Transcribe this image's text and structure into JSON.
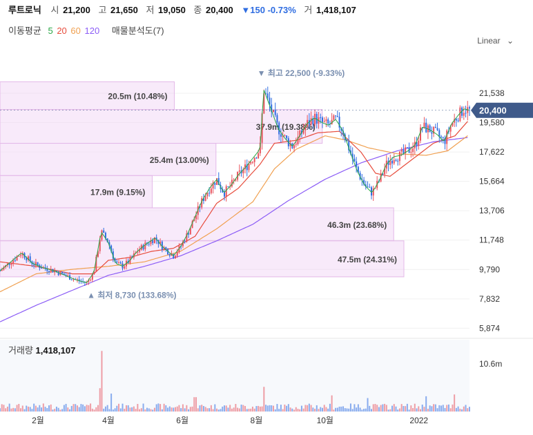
{
  "header": {
    "name": "루트로닉",
    "open_label": "시",
    "open": "21,200",
    "high_label": "고",
    "high": "21,650",
    "low_label": "저",
    "low": "19,050",
    "close_label": "종",
    "close": "20,400",
    "change": "▼150 -0.73%",
    "volume_label": "거",
    "volume": "1,418,107"
  },
  "ma_legend": {
    "title": "이동평균",
    "periods": [
      "5",
      "20",
      "60",
      "120"
    ],
    "analysis": "매물분석도(7)"
  },
  "scale_mode": "Linear",
  "colors": {
    "up": "#e8525c",
    "down": "#2f6de1",
    "ma5": "#28a745",
    "ma20": "#e74c3c",
    "ma60": "#f0a050",
    "ma120": "#8b5cf6",
    "profile": "#f3d8f5",
    "current": "#3f5a8a"
  },
  "chart_data": {
    "type": "candlestick",
    "x_ticks": [
      "2월",
      "4월",
      "6월",
      "8월",
      "10월",
      "2022"
    ],
    "y_ticks": [
      21538,
      19580,
      17622,
      15664,
      13706,
      11748,
      9790,
      7832,
      5874
    ],
    "y_tick_labels": [
      "21,538",
      "19,580",
      "17,622",
      "15,664",
      "13,706",
      "11,748",
      "9,790",
      "7,832",
      "5,874"
    ],
    "ylim": [
      5200,
      24300
    ],
    "current_price": 20400,
    "current_price_label": "20,400",
    "high_marker": {
      "label": "최고 22,500 (-9.33%)",
      "value": 22500,
      "month": 7.2
    },
    "low_marker": {
      "label": "최저 8,730 (133.68%)",
      "value": 8730,
      "month": 2.45
    },
    "price_path": [
      [
        0,
        9700
      ],
      [
        0.3,
        10300
      ],
      [
        0.6,
        10900
      ],
      [
        0.9,
        10200
      ],
      [
        1.2,
        9900
      ],
      [
        1.5,
        9700
      ],
      [
        1.8,
        9400
      ],
      [
        2.1,
        9100
      ],
      [
        2.4,
        8900
      ],
      [
        2.6,
        9600
      ],
      [
        2.8,
        12300
      ],
      [
        3.0,
        11600
      ],
      [
        3.2,
        10200
      ],
      [
        3.4,
        10000
      ],
      [
        3.6,
        10400
      ],
      [
        3.8,
        11000
      ],
      [
        4.0,
        11400
      ],
      [
        4.3,
        11900
      ],
      [
        4.5,
        11300
      ],
      [
        4.8,
        10700
      ],
      [
        5.0,
        11300
      ],
      [
        5.2,
        12200
      ],
      [
        5.4,
        13300
      ],
      [
        5.6,
        14400
      ],
      [
        5.8,
        15200
      ],
      [
        6.0,
        15800
      ],
      [
        6.2,
        14900
      ],
      [
        6.4,
        15400
      ],
      [
        6.6,
        16100
      ],
      [
        6.8,
        16600
      ],
      [
        7.0,
        17200
      ],
      [
        7.2,
        17800
      ],
      [
        7.3,
        21800
      ],
      [
        7.5,
        20500
      ],
      [
        7.7,
        19200
      ],
      [
        7.9,
        18500
      ],
      [
        8.1,
        18000
      ],
      [
        8.3,
        18700
      ],
      [
        8.5,
        19500
      ],
      [
        8.7,
        19900
      ],
      [
        8.9,
        19600
      ],
      [
        9.1,
        19400
      ],
      [
        9.3,
        19800
      ],
      [
        9.5,
        19000
      ],
      [
        9.7,
        17600
      ],
      [
        9.9,
        16300
      ],
      [
        10.1,
        15400
      ],
      [
        10.3,
        14900
      ],
      [
        10.5,
        15700
      ],
      [
        10.7,
        16800
      ],
      [
        10.9,
        17300
      ],
      [
        11.1,
        17400
      ],
      [
        11.3,
        17700
      ],
      [
        11.5,
        18100
      ],
      [
        11.7,
        19300
      ],
      [
        11.9,
        19100
      ],
      [
        12.1,
        18800
      ],
      [
        12.3,
        18300
      ],
      [
        12.5,
        19500
      ],
      [
        12.7,
        20100
      ],
      [
        12.85,
        20500
      ],
      [
        13.0,
        20400
      ]
    ],
    "ma20_path": [
      [
        0,
        10300
      ],
      [
        1.0,
        10000
      ],
      [
        2.0,
        9500
      ],
      [
        2.6,
        9500
      ],
      [
        3.0,
        10400
      ],
      [
        3.6,
        10600
      ],
      [
        4.2,
        11000
      ],
      [
        4.8,
        11200
      ],
      [
        5.4,
        12000
      ],
      [
        6.0,
        14200
      ],
      [
        6.6,
        15200
      ],
      [
        7.2,
        16800
      ],
      [
        7.6,
        18200
      ],
      [
        8.2,
        18400
      ],
      [
        8.8,
        18900
      ],
      [
        9.4,
        19000
      ],
      [
        10.0,
        17600
      ],
      [
        10.4,
        16200
      ],
      [
        10.8,
        16000
      ],
      [
        11.4,
        17100
      ],
      [
        12.0,
        18200
      ],
      [
        12.6,
        18700
      ],
      [
        13.0,
        19800
      ]
    ],
    "ma60_path": [
      [
        0,
        8300
      ],
      [
        1.0,
        9500
      ],
      [
        2.0,
        9800
      ],
      [
        3.0,
        10000
      ],
      [
        4.0,
        10300
      ],
      [
        5.0,
        11000
      ],
      [
        6.0,
        12500
      ],
      [
        7.0,
        14300
      ],
      [
        7.6,
        16500
      ],
      [
        8.2,
        17800
      ],
      [
        9.0,
        18700
      ],
      [
        9.6,
        18400
      ],
      [
        10.2,
        17900
      ],
      [
        11.0,
        17500
      ],
      [
        11.8,
        17400
      ],
      [
        12.4,
        17700
      ],
      [
        13.0,
        18800
      ]
    ],
    "ma120_path": [
      [
        0,
        6300
      ],
      [
        1.0,
        7400
      ],
      [
        2.0,
        8400
      ],
      [
        3.0,
        9400
      ],
      [
        4.0,
        10000
      ],
      [
        5.0,
        10700
      ],
      [
        6.0,
        11700
      ],
      [
        7.0,
        12800
      ],
      [
        8.0,
        14400
      ],
      [
        9.0,
        15800
      ],
      [
        10.0,
        16900
      ],
      [
        11.0,
        17700
      ],
      [
        12.0,
        18300
      ],
      [
        13.0,
        18600
      ]
    ],
    "volume_profile": [
      {
        "label": "20.5m (10.48%)",
        "low": 20450,
        "high": 22300,
        "value": 20.5
      },
      {
        "label": "37.9m (19.38%)",
        "low": 18200,
        "high": 20450,
        "value": 37.9
      },
      {
        "label": "25.4m (13.00%)",
        "low": 16050,
        "high": 18200,
        "value": 25.4
      },
      {
        "label": "17.9m (9.15%)",
        "low": 13900,
        "high": 16050,
        "value": 17.9
      },
      {
        "label": "46.3m (23.68%)",
        "low": 11700,
        "high": 13900,
        "value": 46.3
      },
      {
        "label": "47.5m (24.31%)",
        "low": 9300,
        "high": 11700,
        "value": 47.5
      }
    ],
    "volume": {
      "title": "거래량",
      "latest": "1,418,107",
      "y_tick_label": "10.6m",
      "y_tick": 10.6,
      "ylim": [
        0,
        16
      ],
      "spikes": [
        [
          2.8,
          13.5
        ],
        [
          2.75,
          5.2
        ],
        [
          3.1,
          4.0
        ],
        [
          5.4,
          3.2
        ],
        [
          7.3,
          5.5
        ],
        [
          9.2,
          3.6
        ],
        [
          10.2,
          3.0
        ],
        [
          11.8,
          3.4
        ],
        [
          12.6,
          3.8
        ]
      ]
    }
  }
}
